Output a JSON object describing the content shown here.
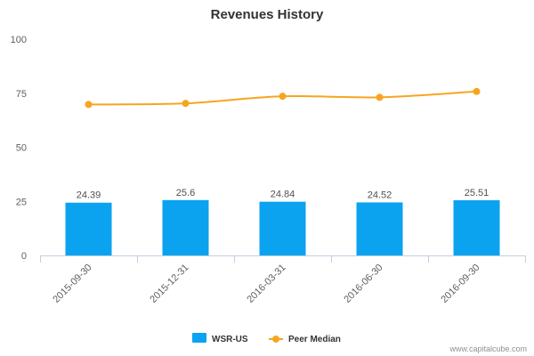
{
  "chart_data": {
    "type": "bar",
    "title": "Revenues History",
    "categories": [
      "2015-09-30",
      "2015-12-31",
      "2016-03-31",
      "2016-06-30",
      "2016-09-30"
    ],
    "ylim": [
      0,
      100
    ],
    "yticks": [
      "0",
      "25",
      "50",
      "75",
      "100"
    ],
    "grid": false,
    "legend_position": "bottom-center",
    "series": [
      {
        "name": "WSR-US",
        "type": "bar",
        "color": "#0ba3ef",
        "values": [
          24.39,
          25.6,
          24.84,
          24.52,
          25.51
        ],
        "data_labels": [
          "24.39",
          "25.6",
          "24.84",
          "24.52",
          "25.51"
        ]
      },
      {
        "name": "Peer Median",
        "type": "line",
        "color": "#f7a51f",
        "values": [
          69.8,
          70.3,
          73.6,
          73.1,
          75.8
        ]
      }
    ]
  },
  "credit": "www.capitalcube.com"
}
